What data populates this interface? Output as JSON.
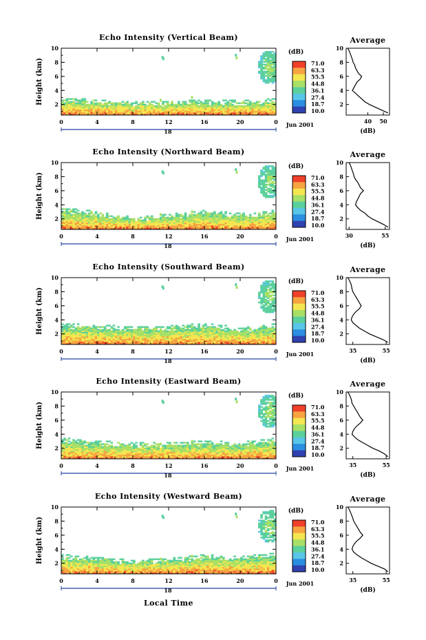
{
  "figure": {
    "bottom_xlabel": "Local Time",
    "date_label": "Jun 2001",
    "colorbar_unit": "(dB)",
    "colorbar_ticks": [
      "71.0",
      "63.3",
      "55.5",
      "44.8",
      "36.1",
      "27.4",
      "18.7",
      "10.0"
    ],
    "colormap": [
      "#f0402a",
      "#f6a440",
      "#f4e650",
      "#a8e066",
      "#5cd09c",
      "#58c6e6",
      "#2c8ee0",
      "#3042b0"
    ],
    "empty_color": "#ffffff",
    "avg_title": "Average",
    "avg_unit": "(dB)"
  },
  "chart_data": [
    {
      "type": "heatmap",
      "title": "Echo Intensity (Vertical Beam)",
      "ylabel": "Height (km)",
      "xlim": [
        0,
        24
      ],
      "ylim": [
        0.5,
        10
      ],
      "xticks": [
        "0",
        "4",
        "8",
        "12",
        "16",
        "20",
        "0"
      ],
      "yticks": [
        "2",
        "4",
        "6",
        "8",
        "10"
      ],
      "midnight_label": "18",
      "color_range_db": [
        10,
        71
      ],
      "average_profile": {
        "type": "line",
        "title": "Average",
        "xlabel": "(dB)",
        "xticks": [
          "40",
          "50"
        ],
        "yticks": [
          "2",
          "4",
          "6",
          "8",
          "10"
        ],
        "xlim": [
          26,
          54
        ],
        "height_km": [
          10,
          9.6,
          9,
          8.4,
          8,
          7.6,
          7.2,
          6.8,
          6.4,
          6,
          5.6,
          5.2,
          4.8,
          4.4,
          4,
          3.6,
          3.2,
          2.8,
          2.4,
          2,
          1.6,
          1.2,
          0.8
        ],
        "db": [
          27,
          28,
          29,
          30,
          30.5,
          31.5,
          32,
          33,
          34,
          36,
          35,
          33,
          32,
          31,
          30,
          32,
          34,
          36,
          38,
          41,
          45,
          49,
          53
        ]
      }
    },
    {
      "type": "heatmap",
      "title": "Echo Intensity (Northward Beam)",
      "ylabel": "Height (km)",
      "xlim": [
        0,
        24
      ],
      "ylim": [
        0.5,
        10
      ],
      "xticks": [
        "0",
        "4",
        "8",
        "12",
        "16",
        "20",
        "0"
      ],
      "yticks": [
        "2",
        "4",
        "6",
        "8",
        "10"
      ],
      "midnight_label": "18",
      "color_range_db": [
        10,
        71
      ],
      "average_profile": {
        "type": "line",
        "title": "Average",
        "xlabel": "(dB)",
        "xticks": [
          "30",
          "55"
        ],
        "yticks": [
          "2",
          "4",
          "6",
          "8",
          "10"
        ],
        "xlim": [
          28,
          58
        ],
        "height_km": [
          10,
          9.6,
          9,
          8.4,
          8,
          7.6,
          7.2,
          6.8,
          6.4,
          6,
          5.6,
          5.2,
          4.8,
          4.4,
          4,
          3.6,
          3.2,
          2.8,
          2.4,
          2,
          1.6,
          1.2,
          0.8
        ],
        "db": [
          30,
          31,
          32,
          33,
          33.5,
          34.5,
          36,
          37,
          38,
          40,
          38,
          37,
          36,
          35,
          34.5,
          36,
          38,
          41,
          43,
          46,
          50,
          54,
          57
        ]
      }
    },
    {
      "type": "heatmap",
      "title": "Echo Intensity (Southward Beam)",
      "ylabel": "Height (km)",
      "xlim": [
        0,
        24
      ],
      "ylim": [
        0.5,
        10
      ],
      "xticks": [
        "0",
        "4",
        "8",
        "12",
        "16",
        "20",
        "0"
      ],
      "yticks": [
        "2",
        "4",
        "6",
        "8",
        "10"
      ],
      "midnight_label": "18",
      "color_range_db": [
        10,
        71
      ],
      "average_profile": {
        "type": "line",
        "title": "Average",
        "xlabel": "(dB)",
        "xticks": [
          "35",
          "55"
        ],
        "yticks": [
          "2",
          "4",
          "6",
          "8",
          "10"
        ],
        "xlim": [
          31,
          57
        ],
        "height_km": [
          10,
          9.6,
          9,
          8.4,
          8,
          7.6,
          7.2,
          6.8,
          6.4,
          6,
          5.6,
          5.2,
          4.8,
          4.4,
          4,
          3.6,
          3.2,
          2.8,
          2.4,
          2,
          1.6,
          1.2,
          0.8
        ],
        "db": [
          32,
          33,
          34,
          34.5,
          35,
          36,
          37,
          38,
          39,
          40,
          39,
          37,
          35.5,
          34.5,
          34,
          35,
          37,
          39,
          42,
          45,
          49,
          53,
          56
        ]
      }
    },
    {
      "type": "heatmap",
      "title": "Echo Intensity (Eastward Beam)",
      "ylabel": "Height (km)",
      "xlim": [
        0,
        24
      ],
      "ylim": [
        0.5,
        10
      ],
      "xticks": [
        "0",
        "4",
        "8",
        "12",
        "16",
        "20",
        "0"
      ],
      "yticks": [
        "2",
        "4",
        "6",
        "8",
        "10"
      ],
      "midnight_label": "18",
      "color_range_db": [
        10,
        71
      ],
      "average_profile": {
        "type": "line",
        "title": "Average",
        "xlabel": "(dB)",
        "xticks": [
          "35",
          "55"
        ],
        "yticks": [
          "2",
          "4",
          "6",
          "8",
          "10"
        ],
        "xlim": [
          31,
          57
        ],
        "height_km": [
          10,
          9.6,
          9,
          8.4,
          8,
          7.6,
          7.2,
          6.8,
          6.4,
          6,
          5.6,
          5.2,
          4.8,
          4.4,
          4,
          3.6,
          3.2,
          2.8,
          2.4,
          2,
          1.6,
          1.2,
          0.8
        ],
        "db": [
          32,
          33,
          34,
          34.5,
          35.5,
          36.5,
          37.5,
          38.5,
          39.5,
          41,
          39.5,
          37.5,
          36,
          35,
          34.5,
          36,
          38,
          41,
          44,
          47,
          51,
          54,
          56
        ]
      }
    },
    {
      "type": "heatmap",
      "title": "Echo Intensity (Westward Beam)",
      "ylabel": "Height (km)",
      "xlim": [
        0,
        24
      ],
      "ylim": [
        0.5,
        10
      ],
      "xticks": [
        "0",
        "4",
        "8",
        "12",
        "16",
        "20",
        "0"
      ],
      "yticks": [
        "2",
        "4",
        "6",
        "8",
        "10"
      ],
      "midnight_label": "18",
      "color_range_db": [
        10,
        71
      ],
      "average_profile": {
        "type": "line",
        "title": "Average",
        "xlabel": "(dB)",
        "xticks": [
          "35",
          "55"
        ],
        "yticks": [
          "2",
          "4",
          "6",
          "8",
          "10"
        ],
        "xlim": [
          31,
          57
        ],
        "height_km": [
          10,
          9.6,
          9,
          8.4,
          8,
          7.6,
          7.2,
          6.8,
          6.4,
          6,
          5.6,
          5.2,
          4.8,
          4.4,
          4,
          3.6,
          3.2,
          2.8,
          2.4,
          2,
          1.6,
          1.2,
          0.8
        ],
        "db": [
          32,
          33,
          34,
          35,
          35.5,
          36.5,
          37.5,
          38.5,
          39.5,
          41,
          39.5,
          37.5,
          36,
          35,
          34.5,
          35.5,
          37.5,
          40,
          43,
          46,
          50,
          54,
          56
        ]
      }
    }
  ]
}
